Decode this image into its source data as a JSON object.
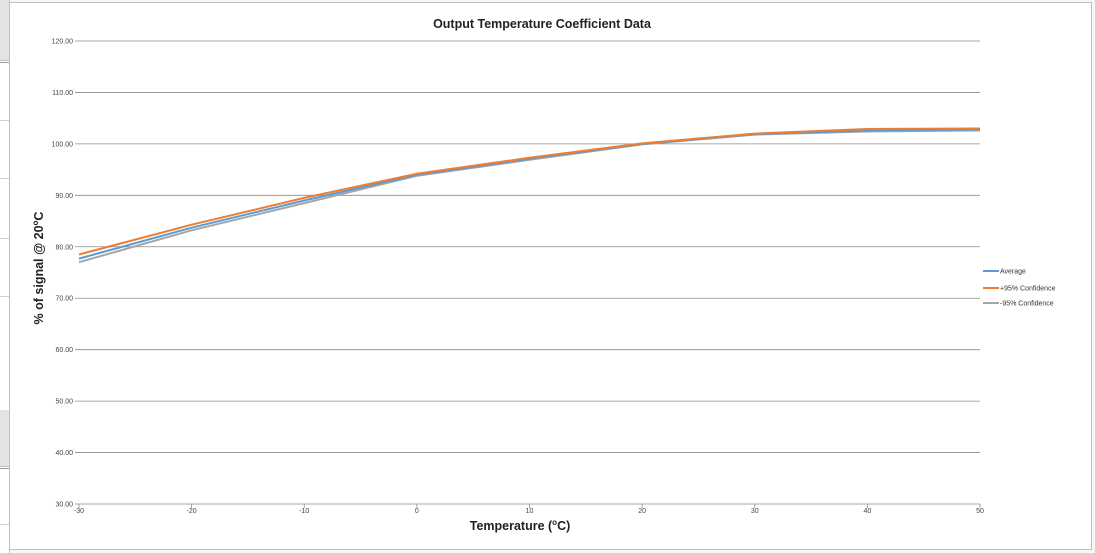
{
  "chart_data": {
    "type": "line",
    "title": "Output Temperature Coefficient Data",
    "xlabel_main": "Temperature  (",
    "xlabel_sup": "o",
    "xlabel_end": "C)",
    "ylabel_main": "% of signal @ 20",
    "ylabel_sup": "o",
    "ylabel_end": "C",
    "x": [
      -30,
      -20,
      -10,
      0,
      10,
      20,
      30,
      40,
      50
    ],
    "x_tick_labels": [
      "-30",
      "-20",
      "-10",
      "0",
      "10",
      "20",
      "30",
      "40",
      "50"
    ],
    "xlim": [
      -30,
      50
    ],
    "ylim": [
      30,
      120
    ],
    "y_tick_labels": [
      "30.00",
      "40.00",
      "50.00",
      "60.00",
      "70.00",
      "80.00",
      "90.00",
      "100.00",
      "110.00",
      "120.00"
    ],
    "grid": "horizontal",
    "legend_position": "right",
    "series": [
      {
        "name": "Average",
        "color": "#5b9bd5",
        "values": [
          77.7,
          83.7,
          89.0,
          94.0,
          97.1,
          100.0,
          101.9,
          102.6,
          102.8
        ]
      },
      {
        "name": "+95% Confidence",
        "color": "#ed7d31",
        "values": [
          78.5,
          84.3,
          89.5,
          94.2,
          97.3,
          100.1,
          102.0,
          102.9,
          103.0
        ]
      },
      {
        "name": "-95% Confidence",
        "color": "#a5a5a5",
        "values": [
          77.0,
          83.2,
          88.5,
          93.8,
          96.9,
          99.9,
          101.8,
          102.4,
          102.6
        ]
      }
    ]
  }
}
